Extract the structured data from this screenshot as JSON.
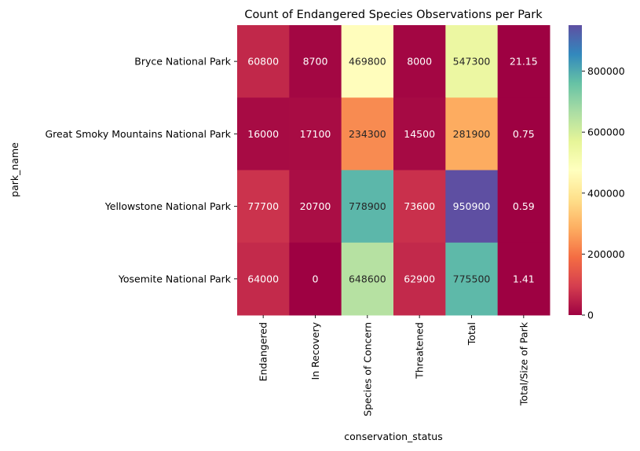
{
  "chart_data": {
    "type": "heatmap",
    "title": "Count of Endangered Species Observations per Park",
    "xlabel": "conservation_status",
    "ylabel": "park_name",
    "columns": [
      "Endangered",
      "In Recovery",
      "Species of Concern",
      "Threatened",
      "Total",
      "Total/Size of Park"
    ],
    "rows": [
      "Bryce National Park",
      "Great Smoky Mountains National Park",
      "Yellowstone National Park",
      "Yosemite National Park"
    ],
    "values": [
      [
        60800,
        8700,
        469800,
        8000,
        547300,
        21.15
      ],
      [
        16000,
        17100,
        234300,
        14500,
        281900,
        0.75
      ],
      [
        77700,
        20700,
        778900,
        73600,
        950900,
        0.59
      ],
      [
        64000,
        0,
        648600,
        62900,
        775500,
        1.41
      ]
    ],
    "cell_labels": [
      [
        "60800",
        "8700",
        "469800",
        "8000",
        "547300",
        "21.15"
      ],
      [
        "16000",
        "17100",
        "234300",
        "14500",
        "281900",
        "0.75"
      ],
      [
        "77700",
        "20700",
        "778900",
        "73600",
        "950900",
        "0.59"
      ],
      [
        "64000",
        "0",
        "648600",
        "62900",
        "775500",
        "1.41"
      ]
    ],
    "colormap": "Spectral",
    "vmin": 0,
    "vmax": 950900,
    "colorbar_ticks": [
      0,
      200000,
      400000,
      600000,
      800000
    ],
    "colorbar_tick_labels": [
      "0",
      "200000",
      "400000",
      "600000",
      "800000"
    ]
  }
}
